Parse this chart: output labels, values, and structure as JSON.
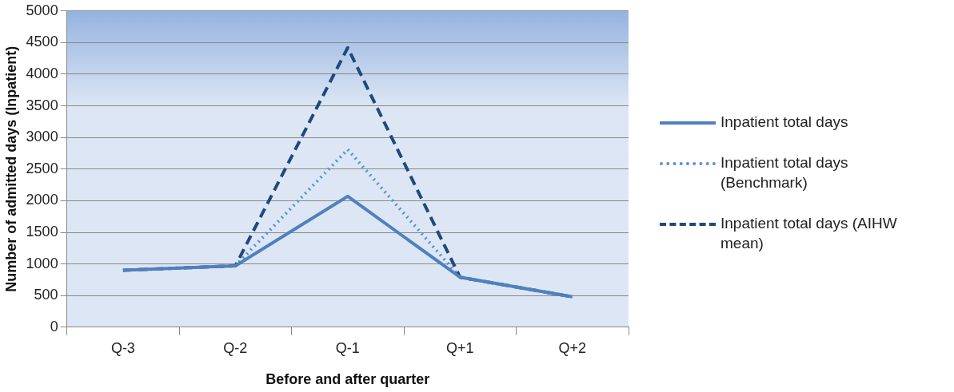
{
  "chart_data": {
    "type": "line",
    "xlabel": "Before and after quarter",
    "ylabel": "Number of admitted days (Inpatient)",
    "categories": [
      "Q-3",
      "Q-2",
      "Q-1",
      "Q+1",
      "Q+2"
    ],
    "series": [
      {
        "name": "Inpatient total days",
        "color": "#4f81bd",
        "line_style": "solid",
        "values": [
          900,
          970,
          2070,
          790,
          480
        ]
      },
      {
        "name": "Inpatient total days (Benchmark)",
        "color": "#5b8fd0",
        "line_style": "dotted",
        "values": [
          900,
          970,
          2810,
          790,
          480
        ]
      },
      {
        "name": "Inpatient total days (AIHW mean)",
        "color": "#1f497d",
        "line_style": "dashed",
        "values": [
          900,
          970,
          4420,
          790,
          480
        ]
      }
    ],
    "ylim": [
      0,
      5000
    ],
    "yticks": [
      0,
      500,
      1000,
      1500,
      2000,
      2500,
      3000,
      3500,
      4000,
      4500,
      5000
    ],
    "grid": "y",
    "legend": "right",
    "marker": "none"
  }
}
